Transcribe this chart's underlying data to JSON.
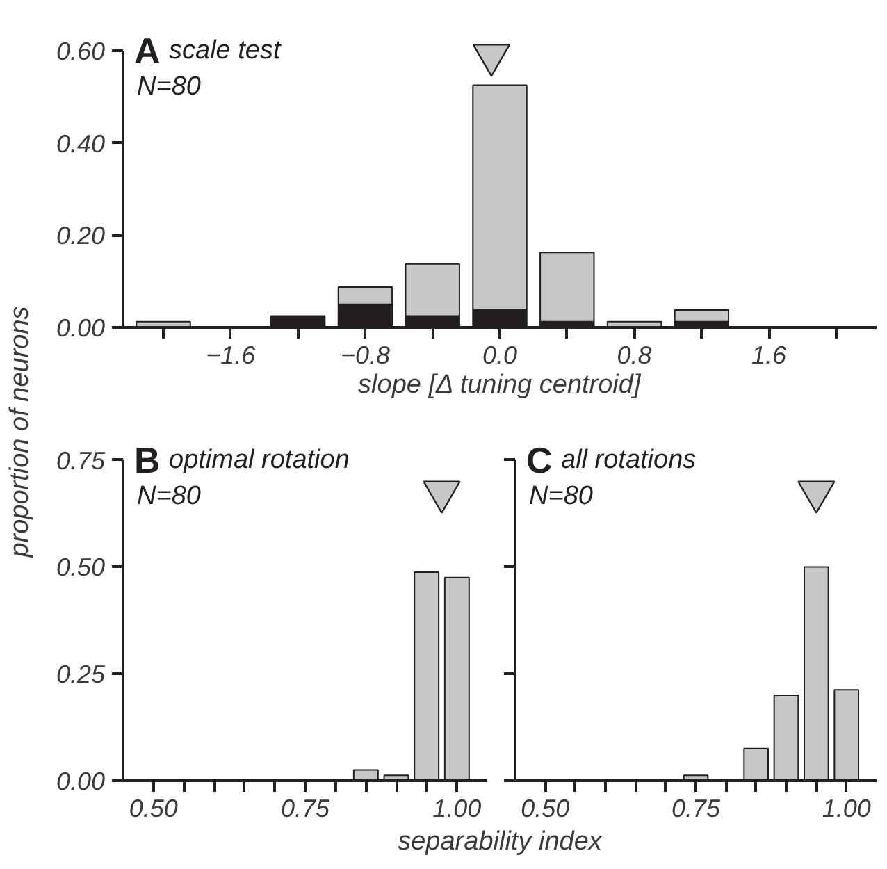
{
  "chart_data": [
    {
      "type": "bar",
      "title": "A scale test",
      "subtitle": "N=80",
      "xlabel": "slope [Δ tuning centroid]",
      "ylabel": "proportion of neurons",
      "stacked": true,
      "x": [
        -2.0,
        -1.2,
        -0.8,
        -0.4,
        0.0,
        0.4,
        0.8,
        1.2
      ],
      "series": [
        {
          "color": "#231f20",
          "values": [
            null,
            0.025,
            0.05,
            0.025,
            0.0375,
            0.0125,
            null,
            0.0125
          ]
        },
        {
          "color": "#c6c7c9",
          "values": [
            0.0125,
            null,
            0.0375,
            0.1125,
            0.4875,
            0.15,
            0.0125,
            0.025
          ]
        },
        {
          "type": "scatter",
          "marker": "triangle",
          "color": "#c6c7c9",
          "x": [
            -0.05
          ],
          "values": [
            0.59
          ]
        }
      ],
      "xlim": [
        -2.24,
        2.24
      ],
      "ylim": [
        0,
        0.6
      ],
      "xticks": [
        {
          "value": -2.0,
          "label": null
        },
        {
          "value": -1.6,
          "label": "−1.6"
        },
        {
          "value": -1.2,
          "label": null
        },
        {
          "value": -0.8,
          "label": "−0.8"
        },
        {
          "value": -0.4,
          "label": null
        },
        {
          "value": 0.0,
          "label": "0.0"
        },
        {
          "value": 0.4,
          "label": null
        },
        {
          "value": 0.8,
          "label": "0.8"
        },
        {
          "value": 1.2,
          "label": null
        },
        {
          "value": 1.6,
          "label": "1.6"
        },
        {
          "value": 2.0,
          "label": null
        }
      ],
      "yticks": [
        {
          "value": 0,
          "label": "0.00"
        },
        {
          "value": 0.2,
          "label": "0.20"
        },
        {
          "value": 0.4,
          "label": "0.40"
        },
        {
          "value": 0.6,
          "label": "0.60"
        }
      ]
    },
    {
      "type": "bar",
      "title": "B optimal rotation",
      "subtitle": "N=80",
      "xlabel": "separability index",
      "x": [
        0.85,
        0.9,
        0.95,
        1.0
      ],
      "series": [
        {
          "color": "#c6c7c9",
          "values": [
            0.025,
            0.0125,
            0.4875,
            0.475
          ]
        },
        {
          "type": "scatter",
          "marker": "triangle",
          "color": "#c6c7c9",
          "x": [
            0.975
          ],
          "values": [
            0.675
          ]
        }
      ],
      "xlim": [
        0.45,
        1.05
      ],
      "ylim": [
        0,
        0.75
      ],
      "xticks": [
        {
          "value": 0.5,
          "label": "0.50"
        },
        {
          "value": 0.55,
          "label": null
        },
        {
          "value": 0.6,
          "label": null
        },
        {
          "value": 0.65,
          "label": null
        },
        {
          "value": 0.7,
          "label": null
        },
        {
          "value": 0.75,
          "label": "0.75"
        },
        {
          "value": 0.8,
          "label": null
        },
        {
          "value": 0.85,
          "label": null
        },
        {
          "value": 0.9,
          "label": null
        },
        {
          "value": 0.95,
          "label": null
        },
        {
          "value": 1.0,
          "label": "1.00"
        }
      ],
      "yticks": [
        {
          "value": 0,
          "label": "0.00"
        },
        {
          "value": 0.25,
          "label": "0.25"
        },
        {
          "value": 0.5,
          "label": "0.50"
        },
        {
          "value": 0.75,
          "label": "0.75"
        }
      ]
    },
    {
      "type": "bar",
      "title": "C all rotations",
      "subtitle": "N=80",
      "tick_labels": "x",
      "x": [
        0.75,
        0.85,
        0.9,
        0.95,
        1.0
      ],
      "series": [
        {
          "color": "#c6c7c9",
          "values": [
            0.0125,
            0.075,
            0.2,
            0.5,
            0.2125
          ]
        },
        {
          "type": "scatter",
          "marker": "triangle",
          "color": "#c6c7c9",
          "x": [
            0.95
          ],
          "values": [
            0.675
          ]
        }
      ],
      "xlim": [
        0.45,
        1.05
      ],
      "ylim": [
        0,
        0.75
      ],
      "xticks": [
        {
          "value": 0.5,
          "label": "0.50"
        },
        {
          "value": 0.55,
          "label": null
        },
        {
          "value": 0.6,
          "label": null
        },
        {
          "value": 0.65,
          "label": null
        },
        {
          "value": 0.7,
          "label": null
        },
        {
          "value": 0.75,
          "label": "0.75"
        },
        {
          "value": 0.8,
          "label": null
        },
        {
          "value": 0.85,
          "label": null
        },
        {
          "value": 0.9,
          "label": null
        },
        {
          "value": 0.95,
          "label": null
        },
        {
          "value": 1.0,
          "label": "1.00"
        }
      ],
      "yticks": [
        {
          "value": 0,
          "label": null
        },
        {
          "value": 0.25,
          "label": null
        },
        {
          "value": 0.5,
          "label": null
        },
        {
          "value": 0.75,
          "label": null
        }
      ]
    }
  ]
}
